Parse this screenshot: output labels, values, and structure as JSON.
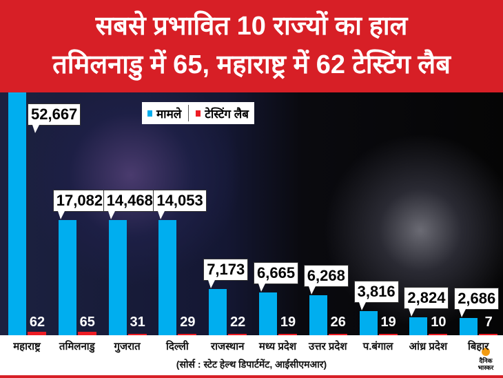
{
  "header": {
    "line1": "सबसे प्रभावित 10 राज्यों का हाल",
    "line2": "तमिलनाडु में 65, महाराष्ट्र में 62 टेस्टिंग लैब"
  },
  "source": "(सोर्स : स्टेट हेल्थ डिपार्टमेंट, आईसीएमआर)",
  "logo": "दैनिक भास्कर",
  "chart_data": {
    "type": "bar",
    "categories": [
      "महाराष्ट्र",
      "तमिलनाडु",
      "गुजरात",
      "दिल्ली",
      "राजस्थान",
      "मध्य प्रदेश",
      "उत्तर प्रदेश",
      "प.बंगाल",
      "आंध्र प्रदेश",
      "बिहार"
    ],
    "series": [
      {
        "name": "मामले",
        "color": "#00aeef",
        "values": [
          52667,
          17082,
          14468,
          14053,
          7173,
          6665,
          6268,
          3816,
          2824,
          2686
        ],
        "labels": [
          "52,667",
          "17,082",
          "14,468",
          "14,053",
          "7,173",
          "6,665",
          "6,268",
          "3,816",
          "2,824",
          "2,686"
        ]
      },
      {
        "name": "टेस्टिंग लैब",
        "color": "#ed1c24",
        "values": [
          62,
          65,
          31,
          29,
          22,
          19,
          26,
          19,
          10,
          7
        ],
        "labels": [
          "62",
          "65",
          "31",
          "29",
          "22",
          "19",
          "26",
          "19",
          "10",
          "7"
        ]
      }
    ],
    "legend": "top-center"
  }
}
